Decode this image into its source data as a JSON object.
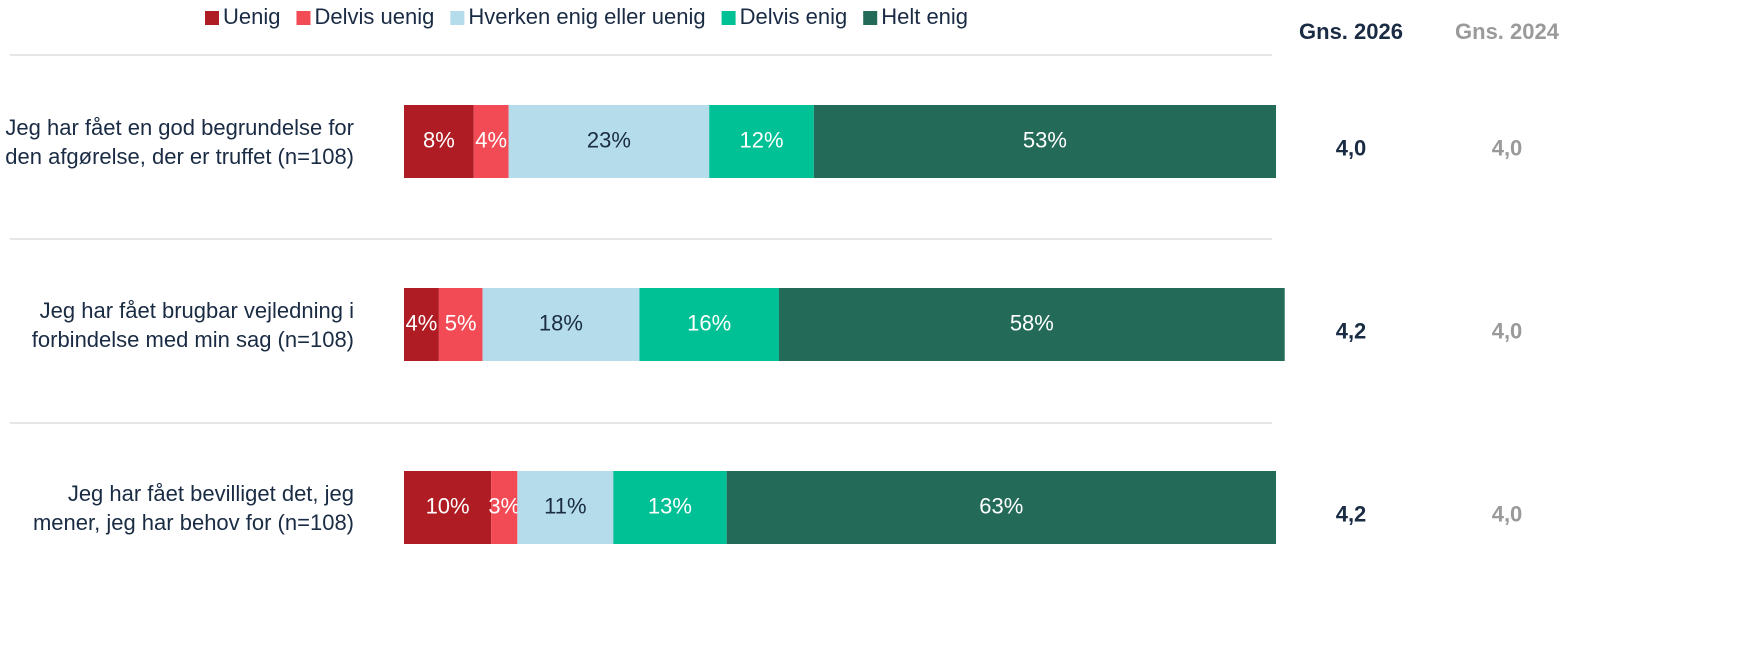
{
  "chart_data": {
    "type": "stacked-bar-horizontal",
    "categories": [
      "Jeg har fået en god begrundelse for den afgørelse, der er truffet (n=108)",
      "Jeg har fået brugbar vejledning i forbindelse med min sag (n=108)",
      "Jeg har fået bevilliget det, jeg mener, jeg har behov for (n=108)"
    ],
    "xlim": [
      0,
      100
    ],
    "series": [
      {
        "name": "Uenig",
        "color": "#b01c24",
        "label_color": "#ffffff",
        "values": [
          8,
          4,
          10
        ],
        "value_labels": [
          "8%",
          "4%",
          "10%"
        ]
      },
      {
        "name": "Delvis uenig",
        "color": "#f24b55",
        "label_color": "#ffffff",
        "values": [
          4,
          5,
          3
        ],
        "value_labels": [
          "4%",
          "5%",
          "3%"
        ]
      },
      {
        "name": "Hverken enig eller uenig",
        "color": "#b5dcea",
        "label_color": "#1a2b44",
        "values": [
          23,
          18,
          11
        ],
        "value_labels": [
          "23%",
          "18%",
          "11%"
        ]
      },
      {
        "name": "Delvis enig",
        "color": "#00c096",
        "label_color": "#ffffff",
        "values": [
          12,
          16,
          13
        ],
        "value_labels": [
          "12%",
          "16%",
          "13%"
        ]
      },
      {
        "name": "Helt enig",
        "color": "#236b58",
        "label_color": "#ffffff",
        "values": [
          53,
          58,
          63
        ],
        "value_labels": [
          "53%",
          "58%",
          "63%"
        ]
      }
    ],
    "columns": [
      {
        "title": "Gns. 2026",
        "color": "#1a2b44",
        "values": [
          "4,0",
          "4,2",
          "4,2"
        ]
      },
      {
        "title": "Gns. 2024",
        "color": "#9a9a9a",
        "values": [
          "4,0",
          "4,0",
          "4,0"
        ]
      }
    ]
  }
}
